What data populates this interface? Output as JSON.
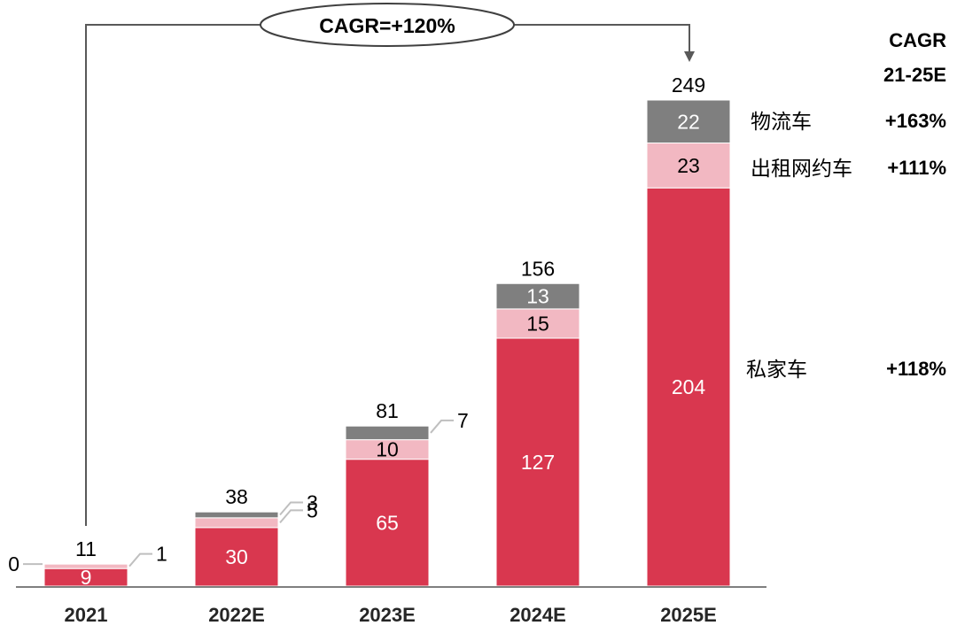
{
  "chart_data": {
    "type": "bar",
    "stacked": true,
    "categories": [
      "2021",
      "2022E",
      "2023E",
      "2024E",
      "2025E"
    ],
    "series": [
      {
        "name": "私家车",
        "values": [
          9,
          30,
          65,
          127,
          204
        ],
        "color": "#d9374f",
        "label_color": "#ffffff",
        "cagr": "+118%"
      },
      {
        "name": "出租网约车",
        "values": [
          1,
          5,
          10,
          15,
          23
        ],
        "color": "#f2b8c2",
        "label_color": "#000000",
        "cagr": "+111%"
      },
      {
        "name": "物流车",
        "values": [
          0,
          3,
          7,
          13,
          22
        ],
        "color": "#7f7f7f",
        "label_color": "#ffffff",
        "cagr": "+163%"
      }
    ],
    "totals": [
      11,
      38,
      81,
      156,
      249
    ],
    "ylim": [
      0,
      249
    ],
    "grid": false,
    "cagr_header": [
      "CAGR",
      "21-25E"
    ],
    "overall_cagr": "CAGR=+120%",
    "outside_labels": [
      {
        "category": "2021",
        "series": 2,
        "text": "0",
        "side": "left"
      },
      {
        "category": "2021",
        "series": 1,
        "text": "1",
        "side": "right"
      },
      {
        "category": "2022E",
        "series": 2,
        "text": "3",
        "side": "right"
      },
      {
        "category": "2022E",
        "series": 1,
        "text": "5",
        "side": "right"
      },
      {
        "category": "2023E",
        "series": 2,
        "text": "7",
        "side": "right"
      }
    ]
  }
}
